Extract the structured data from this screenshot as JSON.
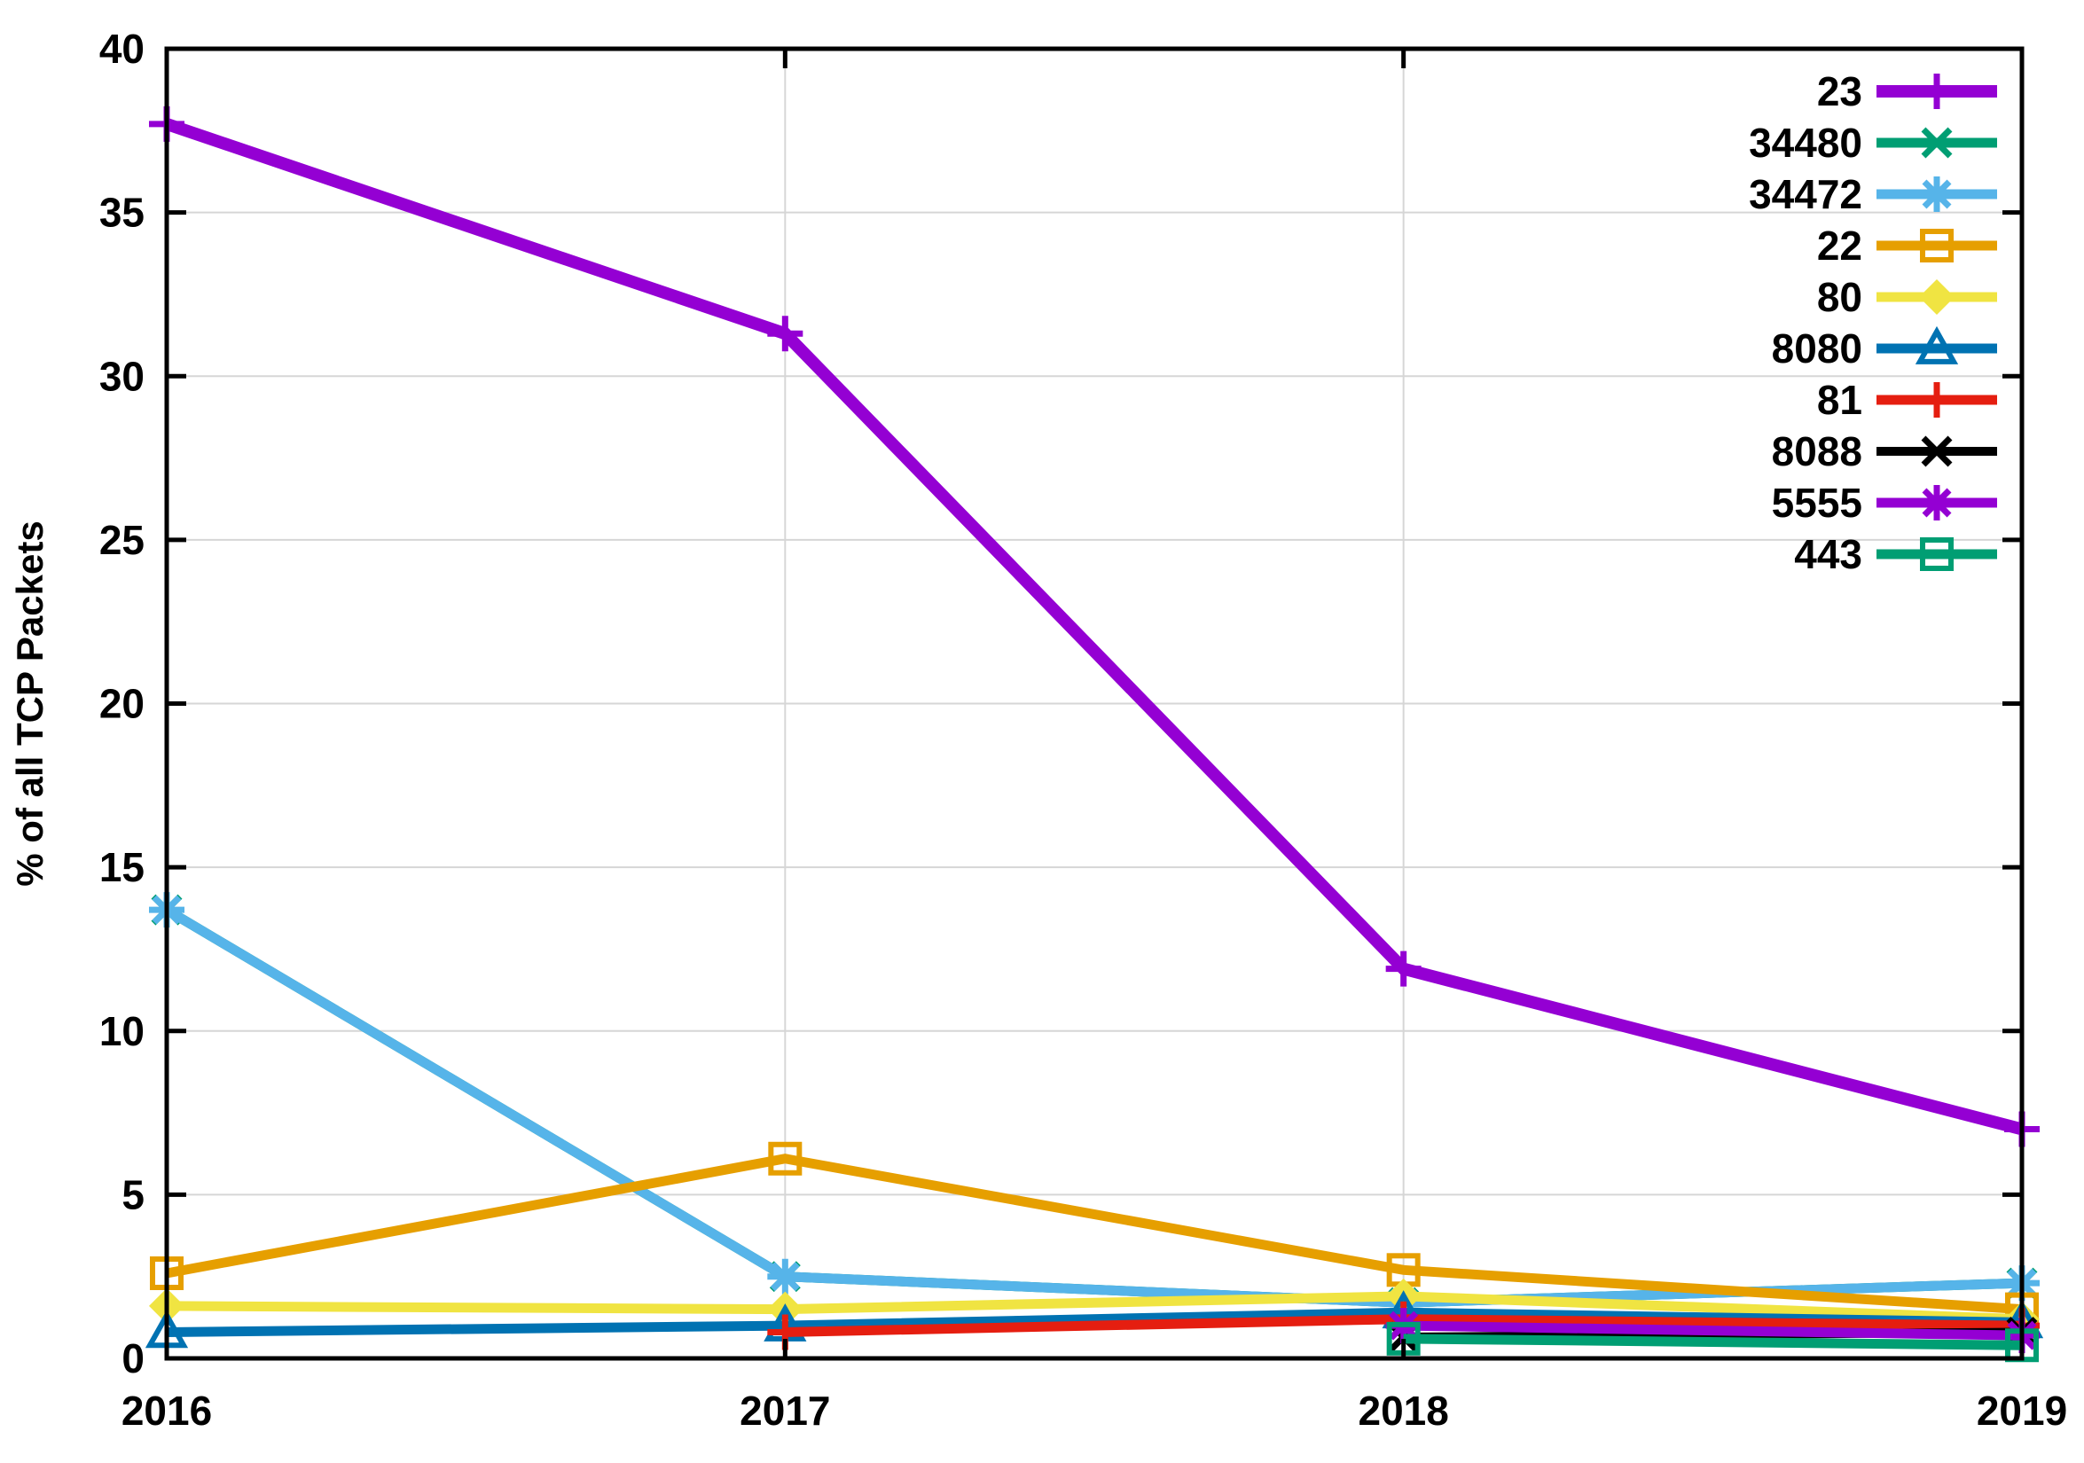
{
  "figure_title": "",
  "chart_data": {
    "type": "line",
    "title": "",
    "xlabel": "",
    "ylabel": "% of all TCP Packets",
    "x": [
      2016,
      2017,
      2018,
      2019
    ],
    "xlim": [
      2016,
      2019
    ],
    "ylim": [
      0,
      40
    ],
    "xticks": [
      2016,
      2017,
      2018,
      2019
    ],
    "yticks": [
      0,
      5,
      10,
      15,
      20,
      25,
      30,
      35,
      40
    ],
    "grid": true,
    "legend_position": "top-right-inside",
    "series": [
      {
        "name": "23",
        "color": "#9400d3",
        "marker": "plus",
        "linewidth": 14,
        "values": [
          37.7,
          31.3,
          11.9,
          7.0
        ]
      },
      {
        "name": "34480",
        "color": "#009e73",
        "marker": "cross",
        "linewidth": 11,
        "values": [
          13.7,
          2.5,
          1.7,
          2.3
        ]
      },
      {
        "name": "34472",
        "color": "#56b4e9",
        "marker": "asterisk",
        "linewidth": 11,
        "values": [
          13.7,
          2.5,
          1.7,
          2.3
        ]
      },
      {
        "name": "22",
        "color": "#e69f00",
        "marker": "square-open",
        "linewidth": 11,
        "values": [
          2.6,
          6.1,
          2.7,
          1.5
        ]
      },
      {
        "name": "80",
        "color": "#f0e442",
        "marker": "diamond-filled",
        "linewidth": 11,
        "values": [
          1.6,
          1.5,
          1.9,
          1.2
        ]
      },
      {
        "name": "8080",
        "color": "#0072b2",
        "marker": "triangle-open",
        "linewidth": 11,
        "values": [
          0.8,
          1.0,
          1.4,
          1.1
        ]
      },
      {
        "name": "81",
        "color": "#e51e10",
        "marker": "plus",
        "linewidth": 11,
        "values": [
          null,
          0.8,
          1.2,
          1.0
        ]
      },
      {
        "name": "8088",
        "color": "#000000",
        "marker": "cross",
        "linewidth": 10,
        "values": [
          null,
          null,
          0.65,
          0.8
        ]
      },
      {
        "name": "5555",
        "color": "#9400d3",
        "marker": "asterisk",
        "linewidth": 11,
        "values": [
          null,
          null,
          1.0,
          0.7
        ]
      },
      {
        "name": "443",
        "color": "#009e73",
        "marker": "square-open",
        "linewidth": 11,
        "values": [
          null,
          null,
          0.6,
          0.4
        ]
      }
    ],
    "colors": {
      "axis": "#000000",
      "grid": "#d6d6d6",
      "background": "#ffffff"
    }
  }
}
